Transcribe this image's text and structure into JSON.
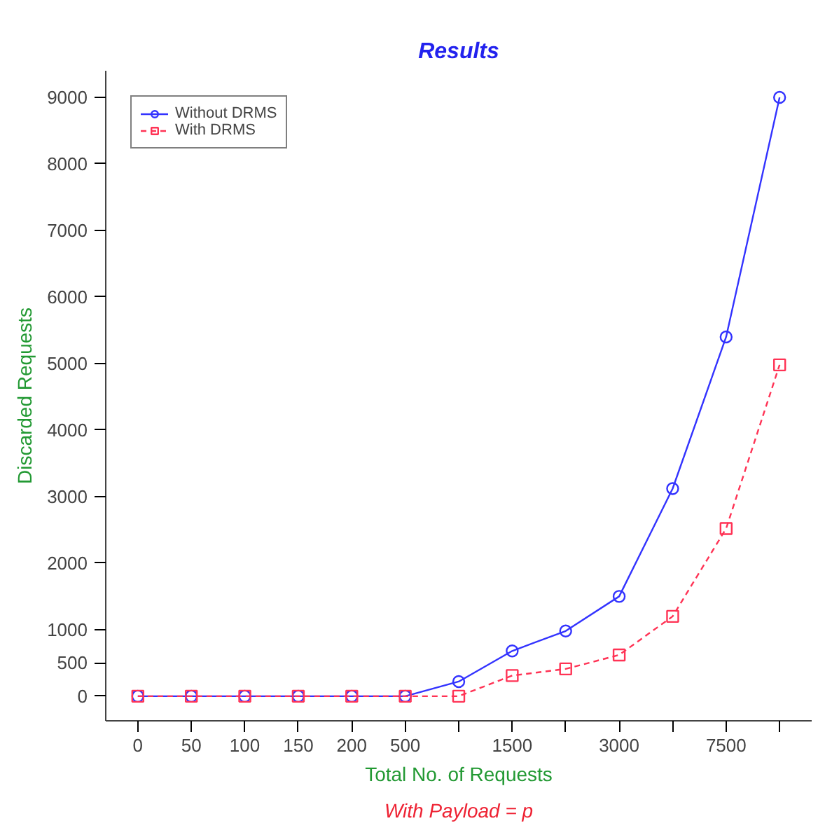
{
  "chart_data": {
    "type": "line",
    "title": "Results",
    "xlabel": "Total No. of Requests",
    "ylabel": "Discarded Requests",
    "annotations": [
      "With Payload = p"
    ],
    "categories": [
      "0",
      "50",
      "100",
      "150",
      "200",
      "500",
      null,
      "1500",
      null,
      "3000",
      null,
      "7500",
      null
    ],
    "series": [
      {
        "name": "Without DRMS",
        "color": "#3333ff",
        "marker": "circle",
        "line_style": "solid",
        "values": [
          0,
          0,
          0,
          0,
          0,
          0,
          220,
          680,
          980,
          1500,
          3120,
          5400,
          9000
        ]
      },
      {
        "name": "With DRMS",
        "color": "#ff3355",
        "marker": "square",
        "line_style": "dashed",
        "values": [
          0,
          0,
          0,
          0,
          0,
          0,
          0,
          310,
          410,
          620,
          1200,
          2520,
          4980
        ]
      }
    ],
    "ylim": [
      -370,
      9400
    ],
    "yticks": [
      0,
      500,
      1000,
      2000,
      3000,
      4000,
      5000,
      6000,
      7000,
      8000,
      9000
    ],
    "grid": false,
    "legend": "top left"
  }
}
